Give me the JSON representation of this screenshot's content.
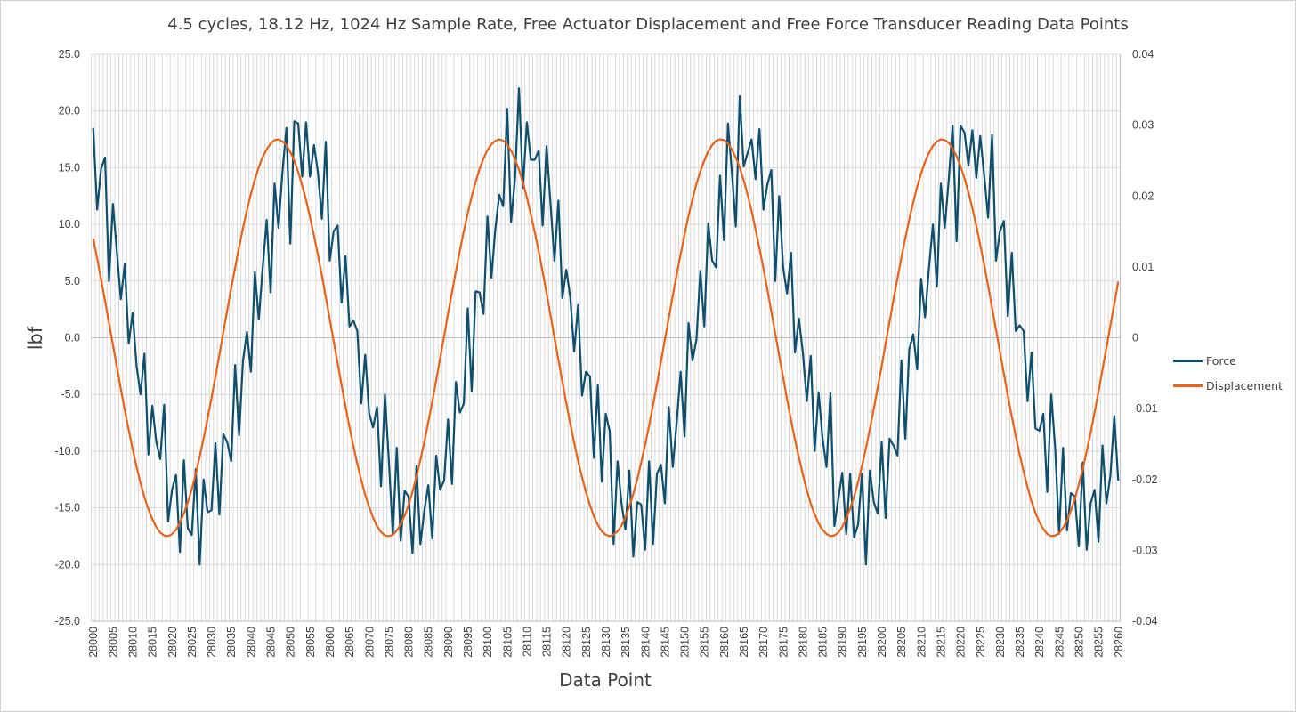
{
  "chart_data": {
    "type": "line",
    "title": "4.5 cycles, 18.12 Hz, 1024 Hz Sample Rate, Free Actuator Displacement and Free Force Transducer Reading Data Points",
    "xlabel": "Data Point",
    "ylabel": "lbf",
    "y2label": "",
    "x_start": 28000,
    "x_end": 28260,
    "x_tick_step": 5,
    "ylim": [
      -25,
      25
    ],
    "y_tick_step": 5,
    "y_tick_labels": [
      "25.0",
      "20.0",
      "15.0",
      "10.0",
      "5.0",
      "0.0",
      "-5.0",
      "-10.0",
      "-15.0",
      "-20.0",
      "-25.0"
    ],
    "y2lim": [
      -0.04,
      0.04
    ],
    "y2_tick_labels": [
      "0.04",
      "0.03",
      "0.02",
      "0.01",
      "0",
      "-0.01",
      "-0.02",
      "-0.03",
      "-0.04"
    ],
    "grid": true,
    "legend_position": "right",
    "series": [
      {
        "name": "Force",
        "axis": "left",
        "color": "#0e4f6e",
        "values": [
          18.5,
          11.3,
          14.9,
          15.9,
          5.0,
          11.8,
          7.6,
          3.4,
          6.5,
          -0.5,
          2.2,
          -2.5,
          -5.0,
          -1.4,
          -10.3,
          -6.0,
          -9.2,
          -10.7,
          -5.9,
          -16.2,
          -13.4,
          -12.1,
          -18.9,
          -10.8,
          -16.8,
          -17.4,
          -11.6,
          -20.0,
          -12.5,
          -15.4,
          -15.2,
          -9.3,
          -15.6,
          -8.5,
          -9.2,
          -10.9,
          -2.4,
          -8.6,
          -2.0,
          0.5,
          -3.0,
          5.8,
          1.6,
          6.2,
          10.4,
          4.0,
          13.6,
          9.7,
          14.6,
          18.5,
          8.3,
          19.1,
          18.9,
          14.2,
          19.0,
          14.2,
          17.0,
          14.6,
          10.5,
          17.3,
          6.8,
          9.4,
          9.9,
          3.1,
          7.2,
          1.0,
          1.5,
          0.6,
          -5.8,
          -1.5,
          -6.7,
          -7.9,
          -6.1,
          -13.1,
          -5.0,
          -10.9,
          -17.3,
          -9.7,
          -17.9,
          -13.5,
          -14.0,
          -19.0,
          -11.3,
          -18.2,
          -15.2,
          -13.0,
          -17.7,
          -10.4,
          -13.4,
          -12.6,
          -7.2,
          -12.9,
          -3.9,
          -6.6,
          -5.8,
          2.6,
          -4.7,
          4.1,
          4.0,
          2.1,
          10.7,
          5.3,
          9.6,
          12.6,
          11.6,
          20.2,
          10.2,
          14.1,
          22.0,
          13.2,
          19.0,
          15.7,
          15.7,
          16.5,
          9.9,
          16.9,
          11.8,
          6.8,
          12.1,
          3.5,
          6.0,
          3.6,
          -1.2,
          2.9,
          -5.1,
          -3.0,
          -3.4,
          -10.6,
          -4.2,
          -12.7,
          -6.7,
          -8.2,
          -18.2,
          -10.9,
          -14.6,
          -16.9,
          -11.7,
          -19.3,
          -14.5,
          -14.7,
          -18.7,
          -10.9,
          -18.2,
          -12.0,
          -11.2,
          -14.6,
          -6.1,
          -11.4,
          -7.5,
          -3.0,
          -8.7,
          1.3,
          -2.0,
          -0.2,
          5.9,
          1.0,
          10.1,
          6.8,
          6.2,
          14.3,
          8.6,
          18.9,
          14.6,
          9.8,
          21.3,
          15.1,
          16.3,
          17.5,
          14.0,
          18.4,
          11.3,
          13.5,
          14.8,
          5.0,
          12.5,
          6.2,
          3.9,
          7.5,
          -1.3,
          1.7,
          -1.3,
          -5.6,
          -1.6,
          -10.0,
          -4.8,
          -8.9,
          -11.4,
          -4.9,
          -16.6,
          -14.2,
          -11.9,
          -17.3,
          -12.0,
          -17.6,
          -16.5,
          -12.0,
          -20.0,
          -11.7,
          -14.5,
          -15.5,
          -9.2,
          -15.9,
          -8.9,
          -9.5,
          -10.4,
          -2.0,
          -8.9,
          -1.0,
          0.3,
          -2.8,
          5.2,
          1.8,
          6.2,
          10.0,
          4.5,
          13.6,
          9.7,
          13.9,
          18.7,
          8.5,
          18.7,
          18.1,
          15.2,
          18.3,
          14.1,
          17.8,
          14.3,
          10.6,
          17.9,
          6.8,
          9.4,
          10.3,
          1.9,
          7.5,
          0.6,
          1.1,
          0.6,
          -5.6,
          -1.3,
          -8.0,
          -8.2,
          -6.7,
          -13.6,
          -5.0,
          -9.7,
          -17.3,
          -9.7,
          -17.0,
          -13.7,
          -14.0,
          -18.4,
          -11.0,
          -18.7,
          -14.6,
          -13.4,
          -18.0,
          -9.5,
          -14.6,
          -12.2,
          -6.9,
          -12.6
        ]
      },
      {
        "name": "Displacement",
        "axis": "right",
        "color": "#e8621a",
        "values": [
          0.014,
          0.0112,
          0.0082,
          0.0052,
          0.0021,
          -0.001,
          -0.0041,
          -0.0072,
          -0.0102,
          -0.013,
          -0.0157,
          -0.0182,
          -0.0205,
          -0.0225,
          -0.0242,
          -0.0256,
          -0.0267,
          -0.0275,
          -0.0279,
          -0.028,
          -0.0277,
          -0.0271,
          -0.0261,
          -0.0248,
          -0.0232,
          -0.0214,
          -0.0192,
          -0.0168,
          -0.0142,
          -0.0114,
          -0.0085,
          -0.0055,
          -0.0024,
          0.0008,
          0.0039,
          0.007,
          0.0099,
          0.0128,
          0.0155,
          0.018,
          0.0203,
          0.0223,
          0.0241,
          0.0255,
          0.0266,
          0.0274,
          0.0279,
          0.028,
          0.0277,
          0.0272,
          0.0262,
          0.025,
          0.0234,
          0.0215,
          0.0194,
          0.017,
          0.0144,
          0.0117,
          0.0088,
          0.0057,
          0.0026,
          -0.0005,
          -0.0036,
          -0.0067,
          -0.0097,
          -0.0126,
          -0.0153,
          -0.0178,
          -0.0201,
          -0.0222,
          -0.0239,
          -0.0254,
          -0.0266,
          -0.0274,
          -0.0279,
          -0.028,
          -0.0278,
          -0.0272,
          -0.0263,
          -0.0251,
          -0.0236,
          -0.0217,
          -0.0196,
          -0.0172,
          -0.0147,
          -0.0119,
          -0.009,
          -0.006,
          -0.0029,
          0.0002,
          0.0034,
          0.0064,
          0.0094,
          0.0123,
          0.015,
          0.0176,
          0.0199,
          0.022,
          0.0238,
          0.0253,
          0.0265,
          0.0273,
          0.0278,
          0.028,
          0.0278,
          0.0273,
          0.0264,
          0.0252,
          0.0237,
          0.0219,
          0.0198,
          0.0174,
          0.0149,
          0.0122,
          0.0093,
          0.0063,
          0.0032,
          0.0,
          -0.0031,
          -0.0062,
          -0.0092,
          -0.0121,
          -0.0148,
          -0.0174,
          -0.0197,
          -0.0218,
          -0.0236,
          -0.0252,
          -0.0264,
          -0.0273,
          -0.0278,
          -0.028,
          -0.0278,
          -0.0273,
          -0.0265,
          -0.0253,
          -0.0238,
          -0.022,
          -0.02,
          -0.0176,
          -0.0151,
          -0.0124,
          -0.0095,
          -0.0065,
          -0.0034,
          -0.0003,
          0.0028,
          0.0059,
          0.0089,
          0.0118,
          0.0146,
          0.0172,
          0.0195,
          0.0217,
          0.0235,
          0.025,
          0.0263,
          0.0272,
          0.0278,
          0.028,
          0.0279,
          0.0274,
          0.0266,
          0.0254,
          0.024,
          0.0222,
          0.0202,
          0.0179,
          0.0153,
          0.0126,
          0.0098,
          0.0068,
          0.0037,
          0.0006,
          -0.0025,
          -0.0056,
          -0.0087,
          -0.0116,
          -0.0144,
          -0.0169,
          -0.0193,
          -0.0215,
          -0.0234,
          -0.0249,
          -0.0262,
          -0.0271,
          -0.0277,
          -0.028,
          -0.0279,
          -0.0275,
          -0.0267,
          -0.0255,
          -0.0241,
          -0.0224,
          -0.0204,
          -0.0181,
          -0.0156,
          -0.0129,
          -0.01,
          -0.007,
          -0.004,
          -0.0008,
          0.0023,
          0.0054,
          0.0084,
          0.0113,
          0.0141,
          0.0167,
          0.0191,
          0.0213,
          0.0232,
          0.0248,
          0.0261,
          0.0271,
          0.0277,
          0.028,
          0.0279,
          0.0275,
          0.0267,
          0.0256,
          0.0242,
          0.0225,
          0.0205,
          0.0183,
          0.0158,
          0.0131,
          0.0103,
          0.0073,
          0.0042,
          0.0011,
          -0.002,
          -0.0051,
          -0.0082,
          -0.0111,
          -0.0139,
          -0.0165,
          -0.0189,
          -0.0211,
          -0.0231,
          -0.0247,
          -0.026,
          -0.027,
          -0.0277,
          -0.028,
          -0.0279,
          -0.0276,
          -0.0268,
          -0.0258,
          -0.0244,
          -0.0227,
          -0.0207,
          -0.0185,
          -0.016,
          -0.0134,
          -0.0105,
          -0.0076,
          -0.0045,
          -0.0014,
          0.0017,
          0.0048,
          0.0079
        ]
      }
    ]
  }
}
